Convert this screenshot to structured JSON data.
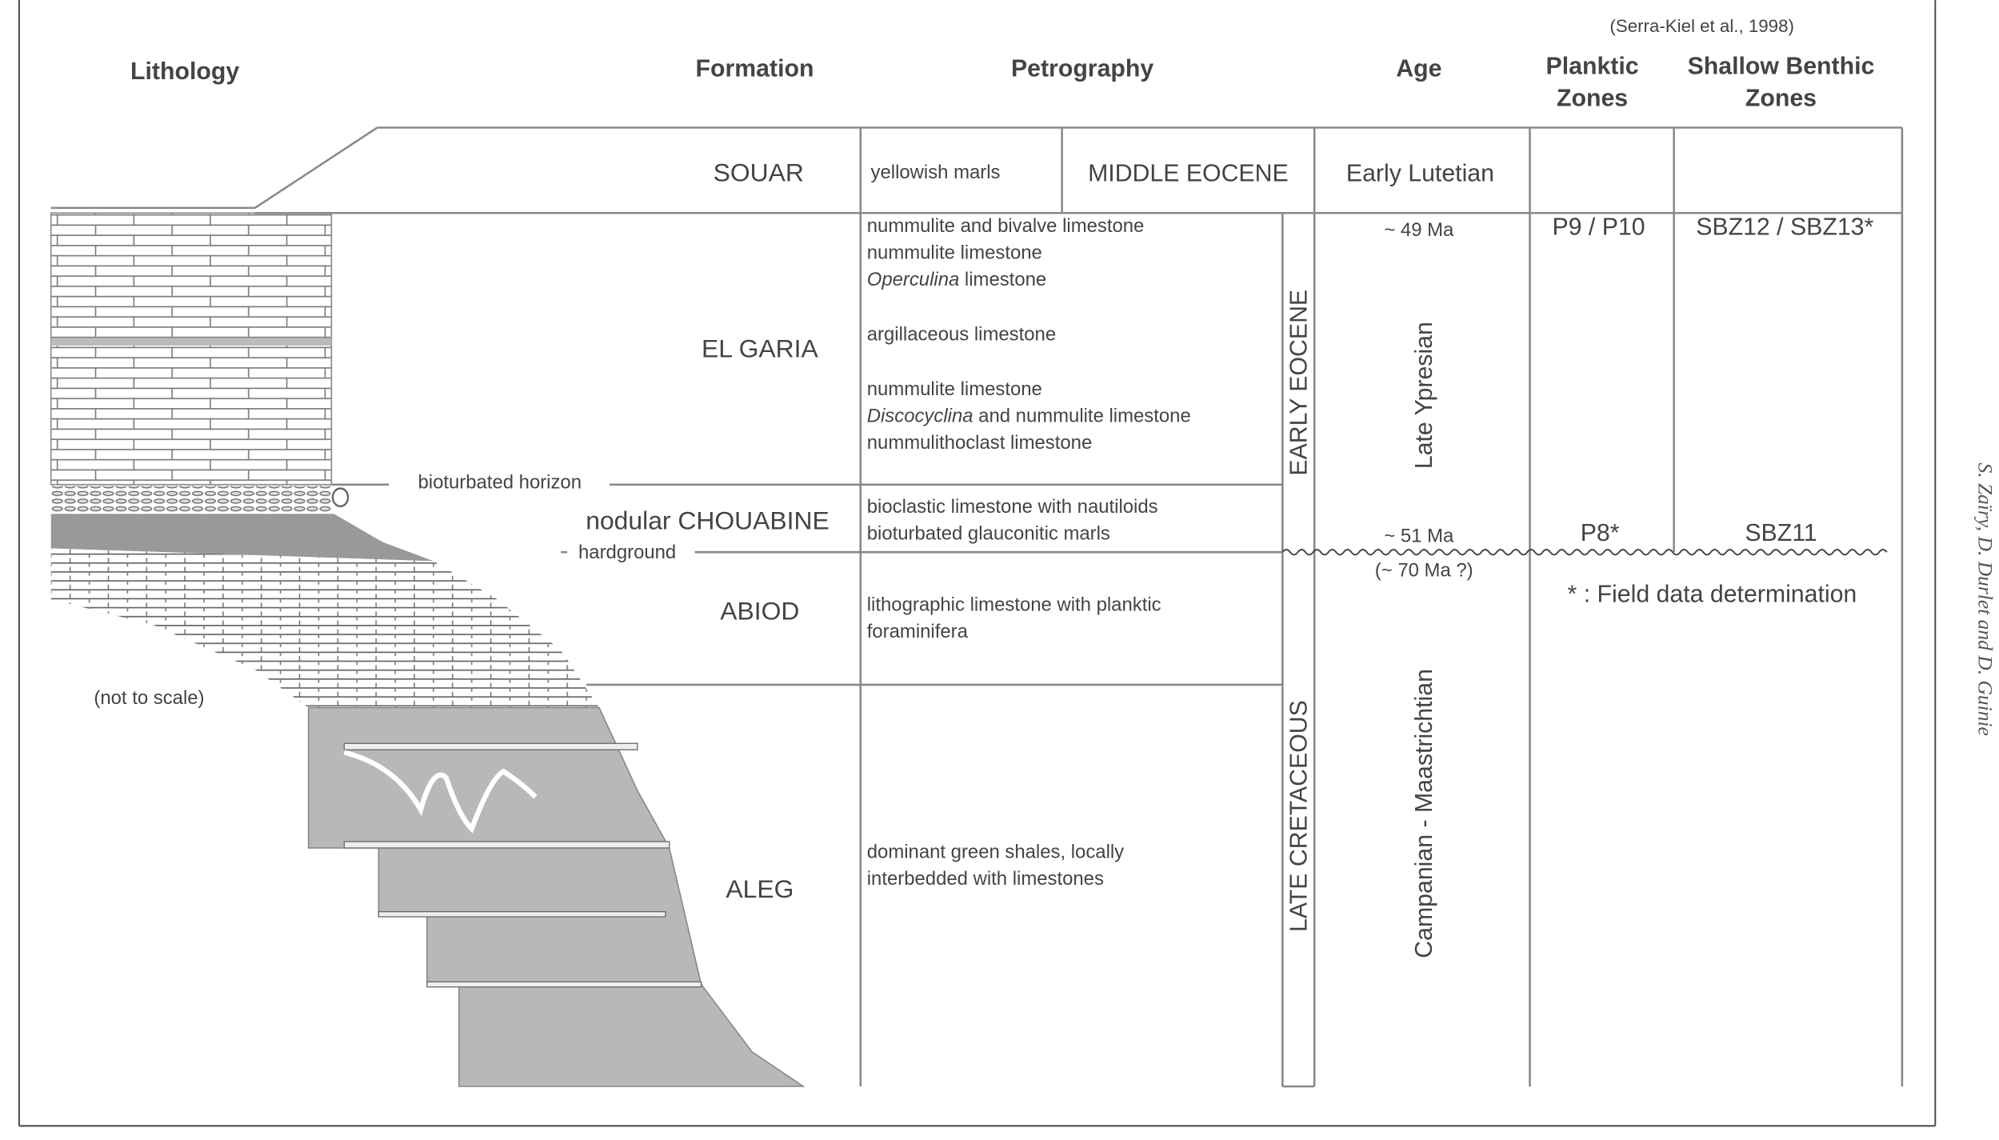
{
  "headers": {
    "lithology": "Lithology",
    "formation": "Formation",
    "petrography": "Petrography",
    "age": "Age",
    "reference": "(Serra-Kiel et al., 1998)",
    "planktic": [
      "Planktic",
      "Zones"
    ],
    "benthic": [
      "Shallow Benthic",
      "Zones"
    ]
  },
  "formations": {
    "souar": "SOUAR",
    "el_garia": "EL GARIA",
    "chouabine": "nodular CHOUABINE",
    "abiod": "ABIOD",
    "aleg": "ALEG"
  },
  "lithology_labels": {
    "bioturbated": "bioturbated horizon",
    "hardground": "hardground",
    "scale_note": "(not to scale)"
  },
  "petrography": {
    "souar": "yellowish marls",
    "el_garia": [
      {
        "text": "nummulite and bivalve limestone",
        "italic": false
      },
      {
        "text": "nummulite limestone",
        "italic": false
      },
      {
        "text": "Operculina limestone",
        "italic_word": "Operculina"
      },
      {
        "text": "argillaceous limestone",
        "italic": false
      },
      {
        "text": "nummulite limestone",
        "italic": false
      },
      {
        "text": "Discocyclina and nummulite limestone",
        "italic_word": "Discocyclina"
      },
      {
        "text": "nummulithoclast limestone",
        "italic": false
      }
    ],
    "chouabine": [
      "bioclastic limestone with nautiloids",
      "bioturbated glauconitic marls"
    ],
    "abiod": [
      "lithographic limestone with planktic",
      "foraminifera"
    ],
    "aleg": [
      "dominant green shales, locally",
      "interbedded with limestones"
    ]
  },
  "epochs": {
    "middle_eocene": "MIDDLE EOCENE",
    "early_eocene": "EARLY EOCENE",
    "late_cretaceous": "LATE CRETACEOUS"
  },
  "ages": {
    "early_lutetian": "Early Lutetian",
    "ma49": "~ 49 Ma",
    "late_ypresian": "Late Ypresian",
    "ma51": "~ 51 Ma",
    "ma70": "(~ 70 Ma ?)",
    "campanian": "Campanian - Maastrichtian"
  },
  "zones": {
    "planktic_upper": "P9 / P10",
    "planktic_lower": "P8*",
    "benthic_upper": "SBZ12 / SBZ13*",
    "benthic_lower": "SBZ11",
    "footnote": "* : Field data determination"
  },
  "credit": "S. Zaïry, D. Durlet and D. Guinie",
  "colors": {
    "line": "#888888",
    "shale": "#b8b8b8",
    "text": "#444444"
  }
}
